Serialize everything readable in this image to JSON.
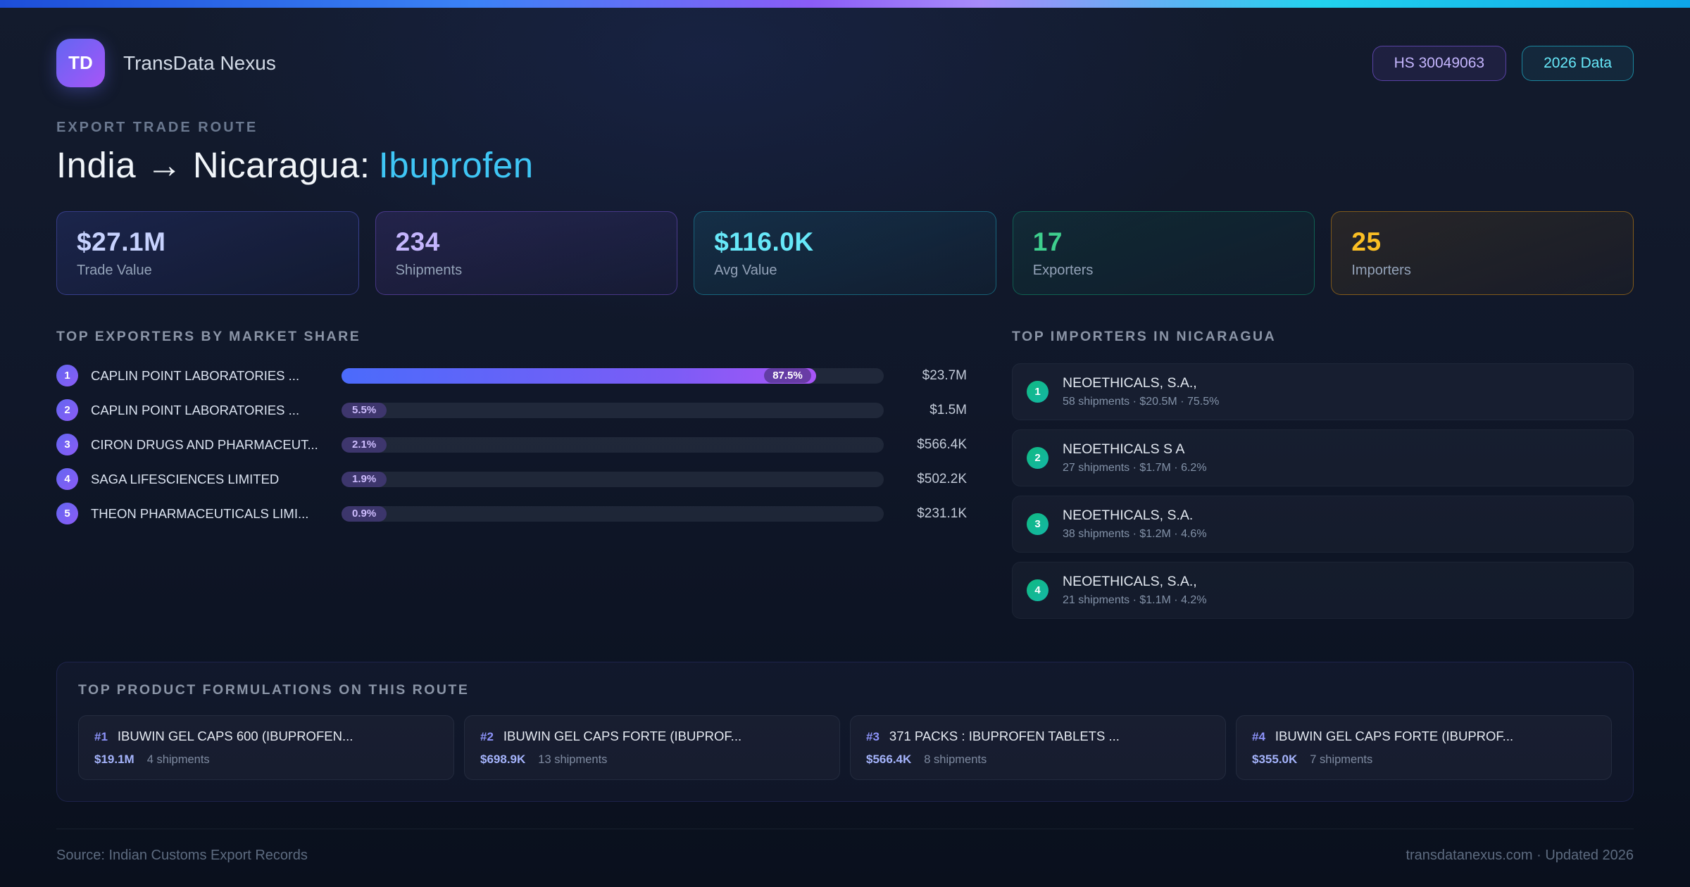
{
  "header": {
    "logo_text": "TD",
    "app_name": "TransData Nexus",
    "hs_badge": "HS 30049063",
    "year_badge": "2026 Data"
  },
  "title": {
    "eyebrow": "EXPORT TRADE ROUTE",
    "route": "India → Nicaragua:",
    "product": "Ibuprofen"
  },
  "colors": {
    "product_accent": "#3fc6f5"
  },
  "stats": [
    {
      "value": "$27.1M",
      "label": "Trade Value",
      "color": "#c7d2fe"
    },
    {
      "value": "234",
      "label": "Shipments",
      "color": "#c4b5fd"
    },
    {
      "value": "$116.0K",
      "label": "Avg Value",
      "color": "#67e8f9"
    },
    {
      "value": "17",
      "label": "Exporters",
      "color": "#3ecf8e"
    },
    {
      "value": "25",
      "label": "Importers",
      "color": "#fbbf24"
    }
  ],
  "exporters": {
    "title": "TOP EXPORTERS BY MARKET SHARE",
    "rows": [
      {
        "rank": "1",
        "name": "CAPLIN POINT LABORATORIES ...",
        "share": "87.5%",
        "value": "$23.7M"
      },
      {
        "rank": "2",
        "name": "CAPLIN POINT LABORATORIES ...",
        "share": "5.5%",
        "value": "$1.5M"
      },
      {
        "rank": "3",
        "name": "CIRON DRUGS AND PHARMACEUT...",
        "share": "2.1%",
        "value": "$566.4K"
      },
      {
        "rank": "4",
        "name": "SAGA LIFESCIENCES LIMITED",
        "share": "1.9%",
        "value": "$502.2K"
      },
      {
        "rank": "5",
        "name": "THEON PHARMACEUTICALS LIMI...",
        "share": "0.9%",
        "value": "$231.1K"
      }
    ]
  },
  "importers": {
    "title": "TOP IMPORTERS IN NICARAGUA",
    "rows": [
      {
        "rank": "1",
        "name": "NEOETHICALS, S.A.,",
        "meta": "58 shipments · $20.5M · 75.5%"
      },
      {
        "rank": "2",
        "name": "NEOETHICALS S A",
        "meta": "27 shipments · $1.7M · 6.2%"
      },
      {
        "rank": "3",
        "name": "NEOETHICALS, S.A.",
        "meta": "38 shipments · $1.2M · 4.6%"
      },
      {
        "rank": "4",
        "name": "NEOETHICALS, S.A.,",
        "meta": "21 shipments · $1.1M · 4.2%"
      }
    ]
  },
  "products": {
    "title": "TOP PRODUCT FORMULATIONS ON THIS ROUTE",
    "cards": [
      {
        "rank": "#1",
        "name": "IBUWIN GEL CAPS 600 (IBUPROFEN...",
        "value": "$19.1M",
        "shipments": "4 shipments"
      },
      {
        "rank": "#2",
        "name": "IBUWIN GEL CAPS FORTE (IBUPROF...",
        "value": "$698.9K",
        "shipments": "13 shipments"
      },
      {
        "rank": "#3",
        "name": "371 PACKS : IBUPROFEN TABLETS ...",
        "value": "$566.4K",
        "shipments": "8 shipments"
      },
      {
        "rank": "#4",
        "name": "IBUWIN GEL CAPS FORTE (IBUPROF...",
        "value": "$355.0K",
        "shipments": "7 shipments"
      }
    ]
  },
  "footer": {
    "source": "Source: Indian Customs Export Records",
    "site": "transdatanexus.com · Updated 2026"
  }
}
